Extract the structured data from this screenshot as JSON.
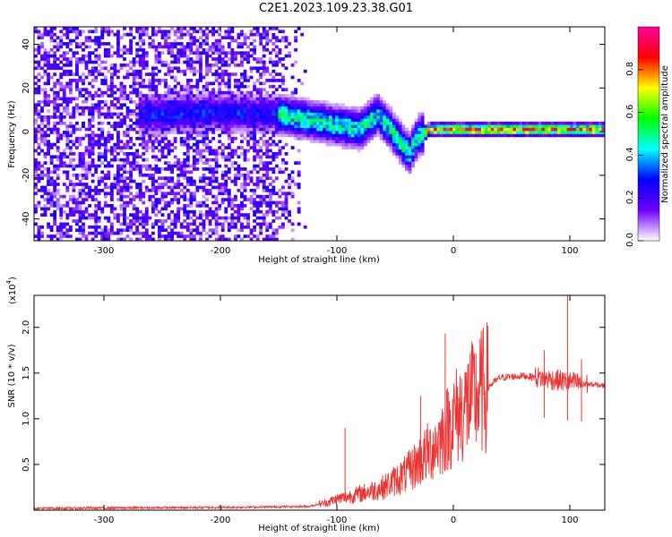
{
  "figure": {
    "title": "C2E1.2023.109.23.38.G01"
  },
  "chart_data": [
    {
      "type": "heatmap",
      "title": "",
      "xlabel": "Height of straight line (km)",
      "ylabel": "Frequency (Hz)",
      "xlim": [
        -360,
        130
      ],
      "ylim": [
        -50,
        48
      ],
      "x_ticks": [
        "-300",
        "-200",
        "-100",
        "0",
        "100"
      ],
      "y_ticks": [
        "40",
        "20",
        "0",
        "-20",
        "-40"
      ],
      "colorbar": {
        "label": "Normalized spectral amplitude",
        "range": [
          0,
          1
        ],
        "ticks": [
          "0.0",
          "0.2",
          "0.4",
          "0.6",
          "0.8"
        ],
        "colors": [
          "#ffffff",
          "#7000ff",
          "#0000ff",
          "#00ffff",
          "#00ff00",
          "#ffff00",
          "#ff0000",
          "#ff00a0"
        ]
      },
      "ridge": {
        "x": [
          -250,
          -200,
          -150,
          -120,
          -100,
          -80,
          -65,
          -55,
          -45,
          -38,
          -30,
          -20,
          0,
          50,
          100,
          130
        ],
        "y": [
          8,
          9,
          8,
          5,
          3,
          1,
          8,
          2,
          -5,
          -10,
          -2,
          1,
          1,
          1,
          1,
          1
        ]
      },
      "background_noise_x_range": [
        -360,
        -125
      ],
      "grid": false
    },
    {
      "type": "line",
      "title": "",
      "xlabel": "Height of straight line (km)",
      "ylabel": "SNR (10 * v/v)",
      "y_multiplier_label": "(x10",
      "y_multiplier_exponent": "4",
      "y_multiplier_suffix": ")",
      "xlim": [
        -360,
        130
      ],
      "ylim": [
        0,
        2.35
      ],
      "x_ticks": [
        "-300",
        "-200",
        "-100",
        "0",
        "100"
      ],
      "y_ticks": [
        "2.0",
        "1.5",
        "1.0",
        "0.5"
      ],
      "series_color": "#ee3333",
      "envelope": {
        "x": [
          -360,
          -200,
          -125,
          -110,
          -100,
          -80,
          -60,
          -40,
          -20,
          -10,
          0,
          20,
          40,
          60,
          80,
          100,
          130
        ],
        "y": [
          0.02,
          0.03,
          0.04,
          0.08,
          0.12,
          0.18,
          0.25,
          0.4,
          0.65,
          0.8,
          1.0,
          1.25,
          1.45,
          1.47,
          1.44,
          1.4,
          1.36
        ]
      },
      "spikes": [
        {
          "x": -93,
          "y": 0.9
        },
        {
          "x": -28,
          "y": 1.25
        },
        {
          "x": -7,
          "y": 1.93
        },
        {
          "x": 13,
          "y": 1.6
        },
        {
          "x": 78,
          "y": 1.75
        },
        {
          "x": 98,
          "y": 2.36
        },
        {
          "x": 110,
          "y": 1.65
        }
      ],
      "grid": false
    }
  ]
}
